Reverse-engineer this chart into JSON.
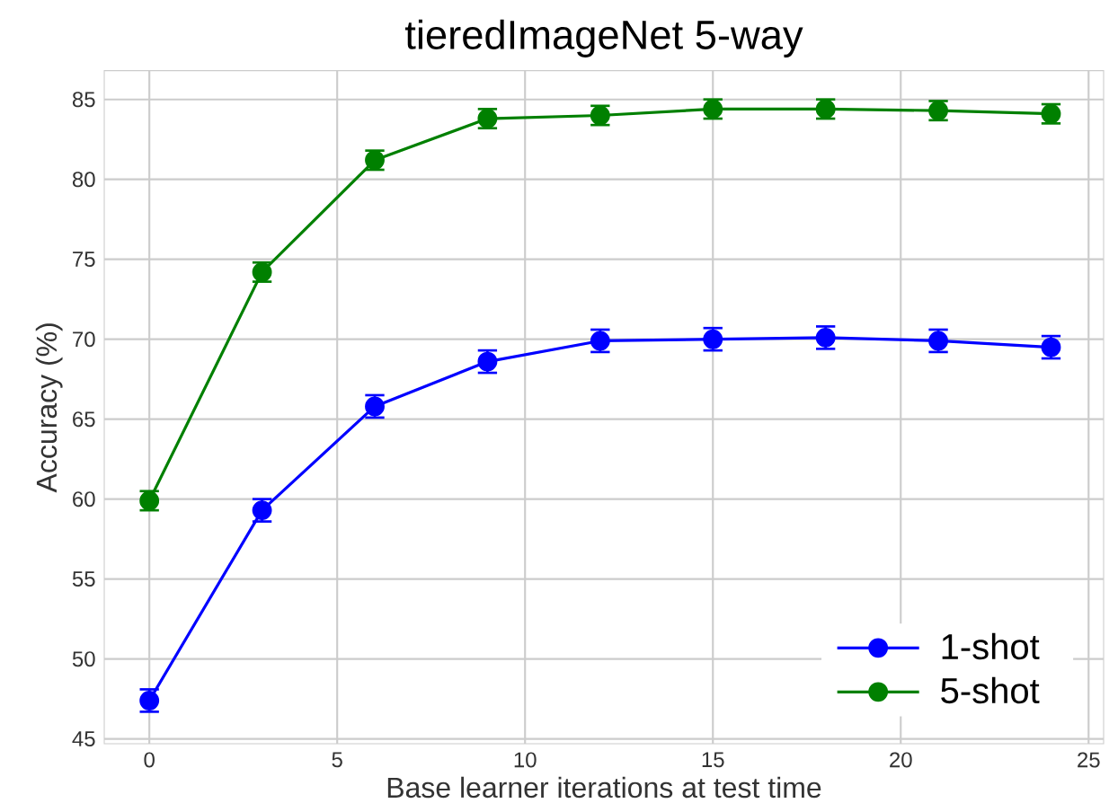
{
  "chart_data": {
    "type": "line",
    "title": "tieredImageNet 5-way",
    "xlabel": "Base learner iterations at test time",
    "ylabel": "Accuracy (%)",
    "x": [
      0,
      3,
      6,
      9,
      12,
      15,
      18,
      21,
      24
    ],
    "series": [
      {
        "name": "1-shot",
        "color": "#0000ff",
        "values": [
          47.4,
          59.3,
          65.8,
          68.6,
          69.9,
          70.0,
          70.1,
          69.9,
          69.5
        ],
        "errors": [
          0.7,
          0.7,
          0.7,
          0.7,
          0.7,
          0.7,
          0.7,
          0.7,
          0.7
        ]
      },
      {
        "name": "5-shot",
        "color": "#008000",
        "values": [
          59.9,
          74.2,
          81.2,
          83.8,
          84.0,
          84.4,
          84.4,
          84.3,
          84.1
        ],
        "errors": [
          0.6,
          0.6,
          0.6,
          0.6,
          0.6,
          0.6,
          0.6,
          0.6,
          0.6
        ]
      }
    ],
    "xlim": [
      -1.2,
      25.4
    ],
    "ylim": [
      44.7,
      86.8
    ],
    "xticks": [
      0,
      5,
      10,
      15,
      20,
      25
    ],
    "yticks": [
      45,
      50,
      55,
      60,
      65,
      70,
      75,
      80,
      85
    ],
    "grid": true,
    "legend": "bottom right",
    "marker": "circle",
    "line_style": "solid"
  }
}
